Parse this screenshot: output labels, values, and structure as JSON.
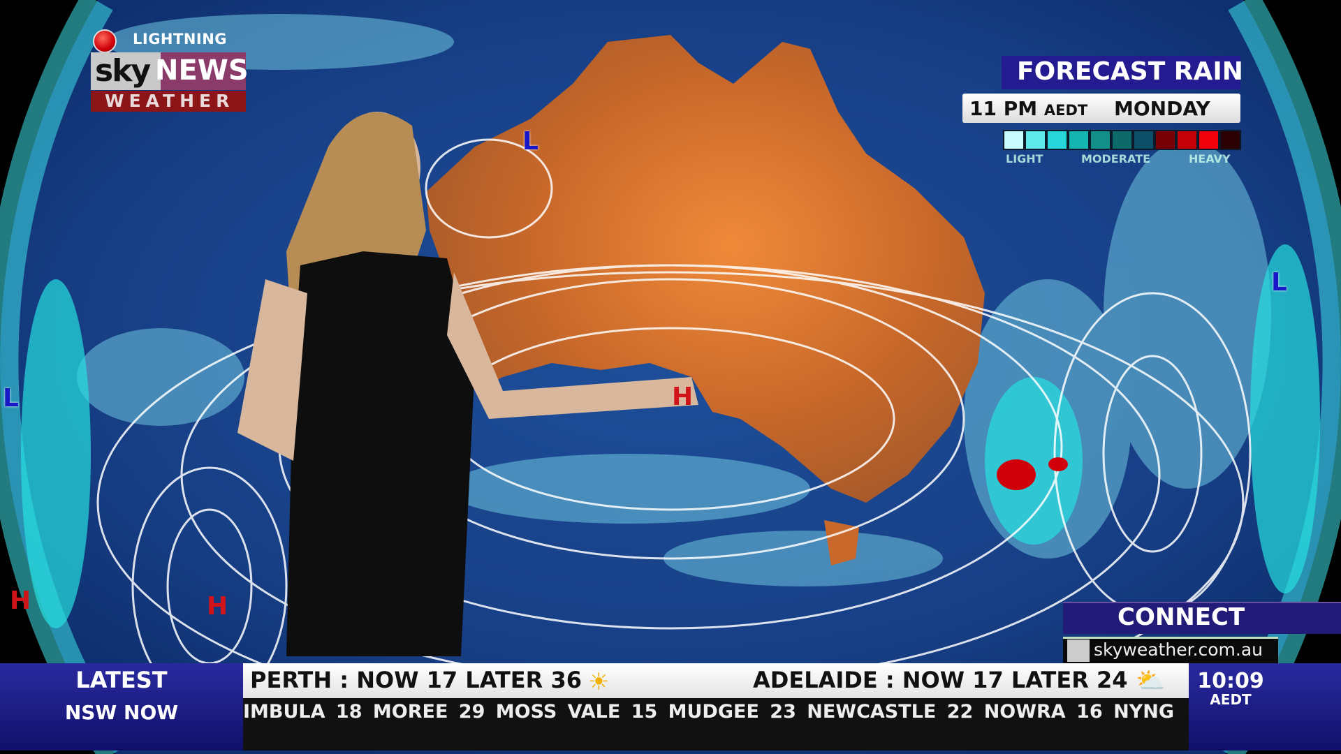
{
  "branding": {
    "alert": "LIGHTNING",
    "sky": "sky",
    "news": "NEWS",
    "weather": "WEATHER"
  },
  "forecast": {
    "title": "FORECAST RAIN",
    "time": "11 PM",
    "timezone": "AEDT",
    "day": "MONDAY",
    "legend_colors": [
      "#c8fbfb",
      "#5ee8ea",
      "#26d6d8",
      "#16b4b0",
      "#128f88",
      "#0e6a6a",
      "#0d4f66",
      "#7a0008",
      "#c40008",
      "#f0000a",
      "#2a0004"
    ],
    "legend_labels": [
      "LIGHT",
      "MODERATE",
      "HEAVY"
    ]
  },
  "map": {
    "pressure_systems": [
      {
        "type": "L",
        "label": "L"
      },
      {
        "type": "L",
        "label": "L"
      },
      {
        "type": "L",
        "label": "L"
      },
      {
        "type": "H",
        "label": "H"
      },
      {
        "type": "H",
        "label": "H"
      },
      {
        "type": "H",
        "label": "H"
      }
    ]
  },
  "connect": {
    "title": "CONNECT",
    "website": "skyweather.com.au"
  },
  "ticker": {
    "latest_label": "LATEST",
    "region_label": "NSW NOW",
    "cities": [
      {
        "text": "PERTH :  NOW  17  LATER  36",
        "icon": "sun-icon"
      },
      {
        "text": "ADELAIDE :  NOW  17  LATER  24",
        "icon": "partly-cloudy-icon"
      }
    ],
    "towns": "IMBULA 18   MOREE 29   MOSS VALE 15   MUDGEE 23   NEWCASTLE 22   NOWRA 16   NYNG",
    "clock": "10:09",
    "clock_tz": "AEDT"
  }
}
